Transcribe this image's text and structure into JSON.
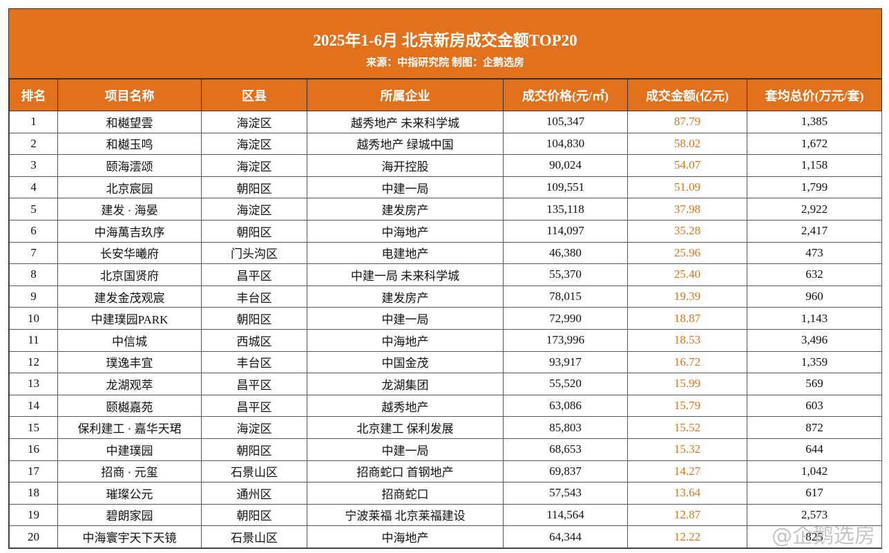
{
  "header": {
    "title": "2025年1-6月 北京新房成交金额TOP20",
    "subtitle": "来源：中指研究院 制图：企鹅选房"
  },
  "table": {
    "columns": [
      "排名",
      "项目名称",
      "区县",
      "所属企业",
      "成交价格(元/㎡)",
      "成交金额(亿元)",
      "套均总价(万元/套)"
    ],
    "rows": [
      [
        "1",
        "和樾望雲",
        "海淀区",
        "越秀地产 未来科学城",
        "105,347",
        "87.79",
        "1,385"
      ],
      [
        "2",
        "和樾玉鸣",
        "海淀区",
        "越秀地产 绿城中国",
        "104,830",
        "58.02",
        "1,672"
      ],
      [
        "3",
        "颐海澐颂",
        "海淀区",
        "海开控股",
        "90,024",
        "54.07",
        "1,158"
      ],
      [
        "4",
        "北京宸园",
        "朝阳区",
        "中建一局",
        "109,551",
        "51.09",
        "1,799"
      ],
      [
        "5",
        "建发 · 海晏",
        "海淀区",
        "建发房产",
        "135,118",
        "37.98",
        "2,922"
      ],
      [
        "6",
        "中海萬吉玖序",
        "朝阳区",
        "中海地产",
        "114,097",
        "35.28",
        "2,417"
      ],
      [
        "7",
        "长安华曦府",
        "门头沟区",
        "电建地产",
        "46,380",
        "25.96",
        "473"
      ],
      [
        "8",
        "北京国贤府",
        "昌平区",
        "中建一局 未来科学城",
        "55,370",
        "25.40",
        "632"
      ],
      [
        "9",
        "建发金茂观宸",
        "丰台区",
        "建发房产",
        "78,015",
        "19.39",
        "960"
      ],
      [
        "10",
        "中建璞园PARK",
        "朝阳区",
        "中建一局",
        "72,990",
        "18.87",
        "1,143"
      ],
      [
        "11",
        "中信城",
        "西城区",
        "中海地产",
        "173,996",
        "18.53",
        "3,496"
      ],
      [
        "12",
        "璞逸丰宜",
        "丰台区",
        "中国金茂",
        "93,917",
        "16.72",
        "1,359"
      ],
      [
        "13",
        "龙湖观萃",
        "昌平区",
        "龙湖集团",
        "55,520",
        "15.99",
        "569"
      ],
      [
        "14",
        "颐樾嘉苑",
        "昌平区",
        "越秀地产",
        "63,086",
        "15.79",
        "603"
      ],
      [
        "15",
        "保利建工 · 嘉华天珺",
        "海淀区",
        "北京建工 保利发展",
        "85,803",
        "15.52",
        "872"
      ],
      [
        "16",
        "中建璞园",
        "朝阳区",
        "中建一局",
        "68,653",
        "15.32",
        "644"
      ],
      [
        "17",
        "招商 · 元玺",
        "石景山区",
        "招商蛇口 首钢地产",
        "69,837",
        "14.27",
        "1,042"
      ],
      [
        "18",
        "璀璨公元",
        "通州区",
        "招商蛇口",
        "57,543",
        "13.64",
        "617"
      ],
      [
        "19",
        "碧朗家园",
        "朝阳区",
        "宁波莱福 北京莱福建设",
        "114,564",
        "12.87",
        "2,573"
      ],
      [
        "20",
        "中海寰宇天下天镜",
        "石景山区",
        "中海地产",
        "64,344",
        "12.22",
        "825"
      ]
    ]
  },
  "watermark": "@企鹅选房"
}
